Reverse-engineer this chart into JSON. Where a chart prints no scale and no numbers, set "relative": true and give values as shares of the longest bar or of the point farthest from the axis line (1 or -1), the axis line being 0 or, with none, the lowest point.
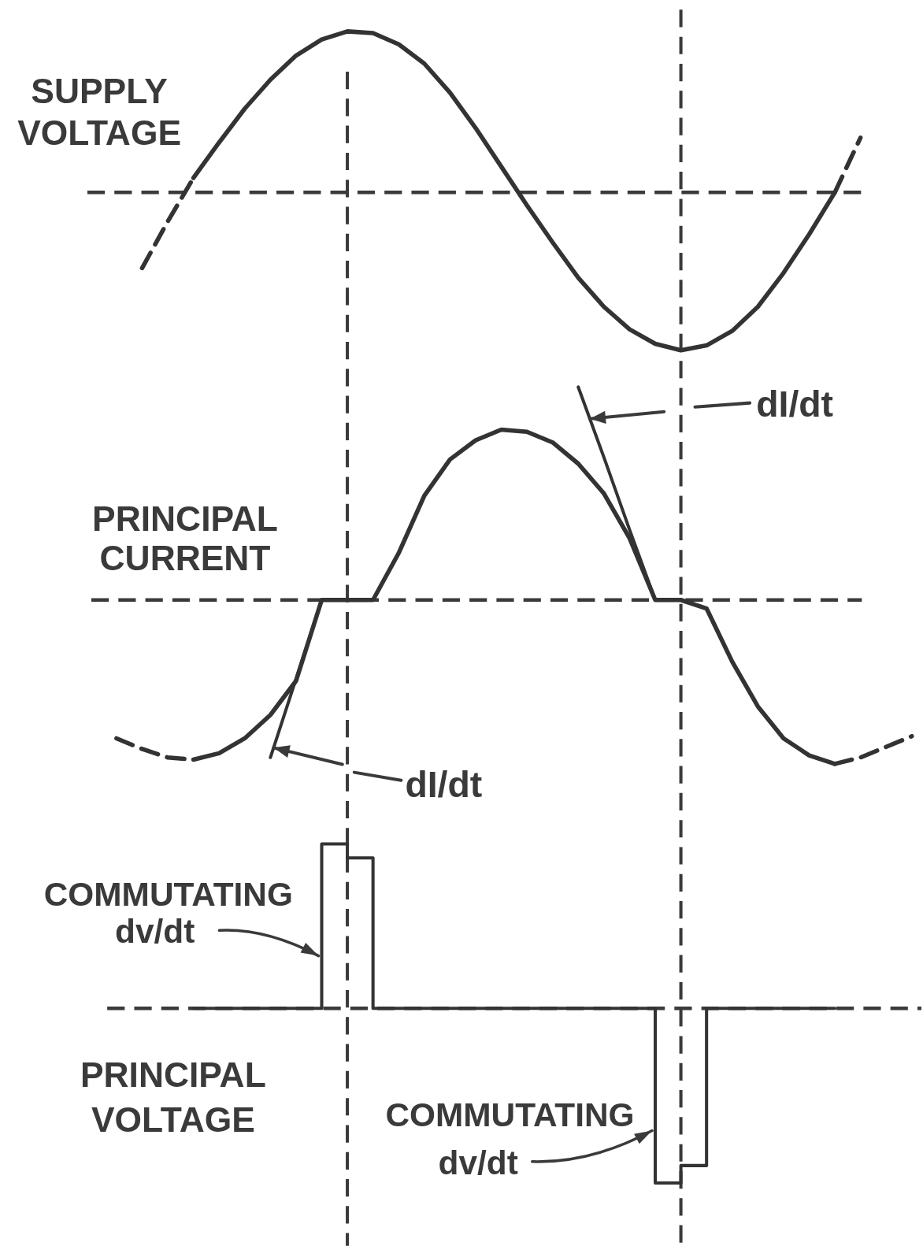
{
  "chart_data": [
    {
      "type": "line",
      "relative": true,
      "line_style": "solid",
      "categories": [
        null,
        null,
        null,
        null,
        null,
        null,
        null,
        null,
        null,
        null,
        null,
        null,
        null,
        null,
        null,
        null,
        null,
        null,
        null,
        null,
        null,
        null,
        null,
        null,
        null,
        null,
        null,
        null,
        null,
        null,
        null,
        null,
        null
      ],
      "series": [
        {
          "name": "SUPPLY VOLTAGE",
          "color": "#333333",
          "values": [
            null,
            null,
            null,
            null,
            0.09,
            0.31,
            0.52,
            0.7,
            0.85,
            0.95,
            1.0,
            0.99,
            0.92,
            0.8,
            0.62,
            0.4,
            0.16,
            -0.08,
            -0.31,
            -0.53,
            -0.71,
            -0.85,
            -0.94,
            -0.98,
            -0.95,
            -0.86,
            -0.71,
            -0.5,
            -0.26,
            0.0,
            null,
            null,
            null
          ]
        },
        {
          "color": "#333333",
          "line_style": "dashed",
          "values": [
            null,
            null,
            -0.47,
            -0.18,
            0.09,
            null,
            null,
            null,
            null,
            null,
            null,
            null,
            null,
            null,
            null,
            null,
            null,
            null,
            null,
            null,
            null,
            null,
            null,
            null,
            null,
            null,
            null,
            null,
            null,
            0.0,
            0.34,
            null,
            null
          ]
        }
      ],
      "ref_lines": [
        {
          "axis": "y",
          "value": 0,
          "line_style": "dashed"
        }
      ]
    },
    {
      "type": "line",
      "relative": true,
      "line_style": "solid",
      "categories": [
        null,
        null,
        null,
        null,
        null,
        null,
        null,
        null,
        null,
        null,
        null,
        null,
        null,
        null,
        null,
        null,
        null,
        null,
        null,
        null,
        null,
        null,
        null,
        null,
        null,
        null,
        null,
        null,
        null,
        null,
        null,
        null,
        null
      ],
      "series": [
        {
          "name": "PRINCIPAL CURRENT",
          "color": "#333333",
          "values": [
            null,
            null,
            null,
            null,
            -0.75,
            -0.72,
            -0.65,
            -0.54,
            -0.38,
            0,
            0,
            0,
            0.22,
            0.49,
            0.66,
            0.75,
            0.8,
            0.79,
            0.74,
            0.64,
            0.5,
            0.29,
            0,
            0,
            -0.04,
            -0.29,
            -0.5,
            -0.65,
            -0.73,
            -0.77,
            null,
            null,
            null
          ]
        },
        {
          "color": "#333333",
          "line_style": "dashed",
          "values": [
            null,
            -0.65,
            -0.7,
            -0.74,
            -0.75,
            null,
            null,
            null,
            null,
            null,
            null,
            null,
            null,
            null,
            null,
            null,
            null,
            null,
            null,
            null,
            null,
            null,
            null,
            null,
            null,
            null,
            null,
            null,
            null,
            -0.77,
            -0.74,
            -0.69,
            -0.64
          ]
        },
        {
          "type": "line",
          "color": "#333333",
          "values": [
            null,
            null,
            null,
            null,
            null,
            null,
            null,
            -0.74,
            -0.37,
            0,
            null,
            null,
            null,
            null,
            null,
            null,
            null,
            null,
            null,
            1.0,
            0.67,
            0.33,
            0,
            null,
            null,
            null,
            null,
            null,
            null,
            null,
            null,
            null,
            null
          ]
        }
      ],
      "ref_lines": [
        {
          "axis": "y",
          "value": 0,
          "line_style": "dashed"
        }
      ],
      "annotations": [
        "dI/dt",
        "dI/dt"
      ]
    },
    {
      "type": "step",
      "relative": true,
      "line_style": "solid",
      "categories": [
        null,
        null,
        null,
        null,
        null,
        null,
        null,
        null,
        null,
        null,
        null,
        null,
        null,
        null,
        null,
        null,
        null,
        null,
        null,
        null,
        null,
        null,
        null,
        null,
        null,
        null,
        null,
        null,
        null,
        null,
        null,
        null,
        null
      ],
      "series": [
        {
          "name": "PRINCIPAL VOLTAGE",
          "color": "#333333",
          "values": [
            null,
            null,
            null,
            null,
            0,
            0,
            0,
            0,
            0,
            0.94,
            0.86,
            0,
            0,
            0,
            0,
            0,
            0,
            0,
            0,
            0,
            0,
            0,
            -1.0,
            -0.9,
            0,
            0,
            0,
            0,
            0,
            0,
            null,
            null,
            null
          ]
        }
      ],
      "ref_lines": [
        {
          "axis": "y",
          "value": 0,
          "line_style": "dashed"
        }
      ],
      "annotations": [
        "COMMUTATING dv/dt",
        "COMMUTATING dv/dt"
      ]
    }
  ]
}
